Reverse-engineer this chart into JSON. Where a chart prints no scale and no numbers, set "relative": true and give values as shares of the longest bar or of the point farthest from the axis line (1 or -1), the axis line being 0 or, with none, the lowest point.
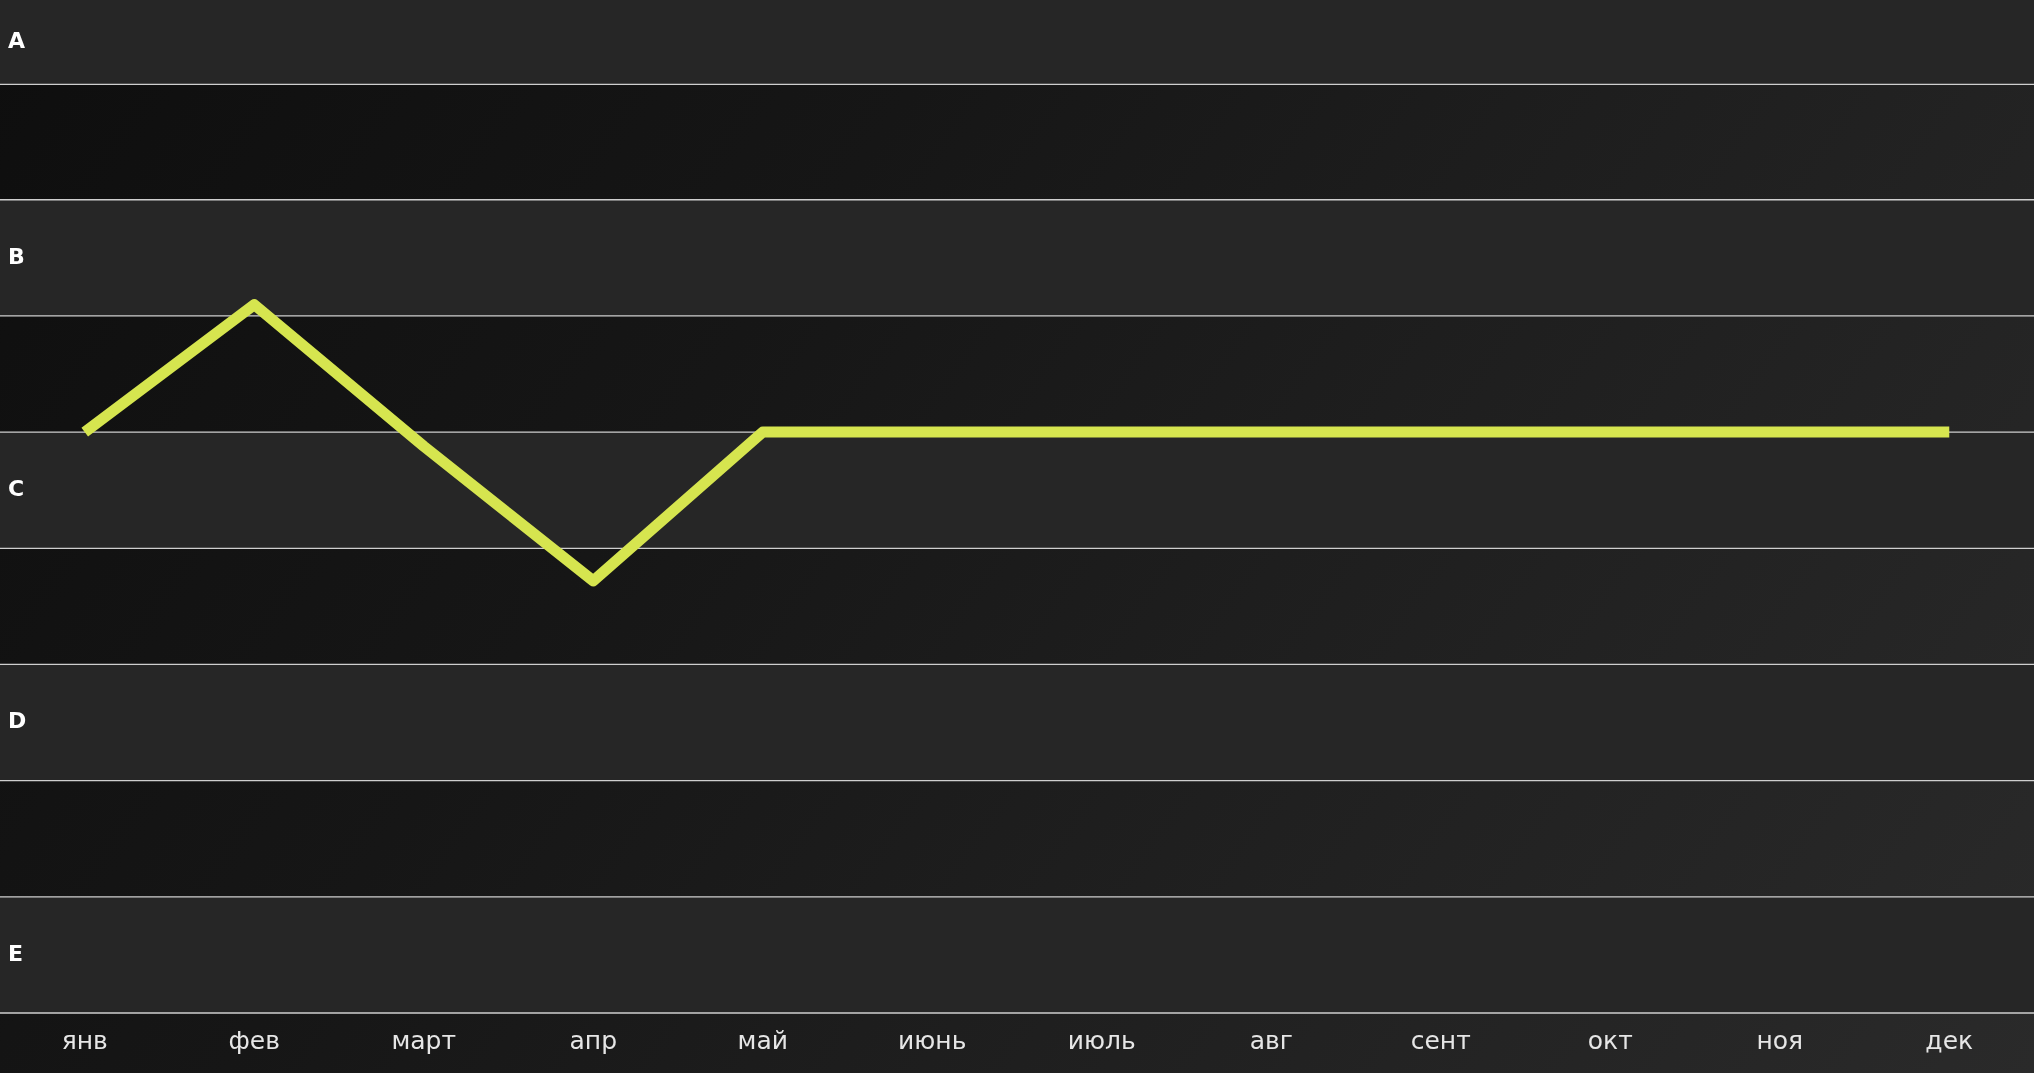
{
  "chart_data": {
    "type": "line",
    "relative": true,
    "categories": [
      "янв",
      "фев",
      "март",
      "апр",
      "май",
      "июнь",
      "июль",
      "авг",
      "сент",
      "окт",
      "ноя",
      "дек"
    ],
    "series": [
      {
        "color": "#d6e54f",
        "values": [
          0.82,
          1,
          0.8,
          0.61,
          0.82,
          0.82,
          0.82,
          0.82,
          0.82,
          0.82,
          0.82,
          0.82
        ]
      }
    ],
    "bands": [
      {
        "axis": "y",
        "from": 0,
        "to": 0.164,
        "label": "E",
        "color": "#262626"
      },
      {
        "axis": "y",
        "from": 0.328,
        "to": 0.492,
        "label": "D",
        "color": "#262626"
      },
      {
        "axis": "y",
        "from": 0.656,
        "to": 0.82,
        "label": "C",
        "color": "#262626"
      },
      {
        "axis": "y",
        "from": 0.984,
        "to": 1.148,
        "label": "B",
        "color": "#262626"
      },
      {
        "axis": "y",
        "from": 1.311,
        "to": 1.43,
        "label": "A",
        "color": "#262626"
      }
    ],
    "legend": false,
    "marker": "none",
    "line_style": "solid"
  }
}
